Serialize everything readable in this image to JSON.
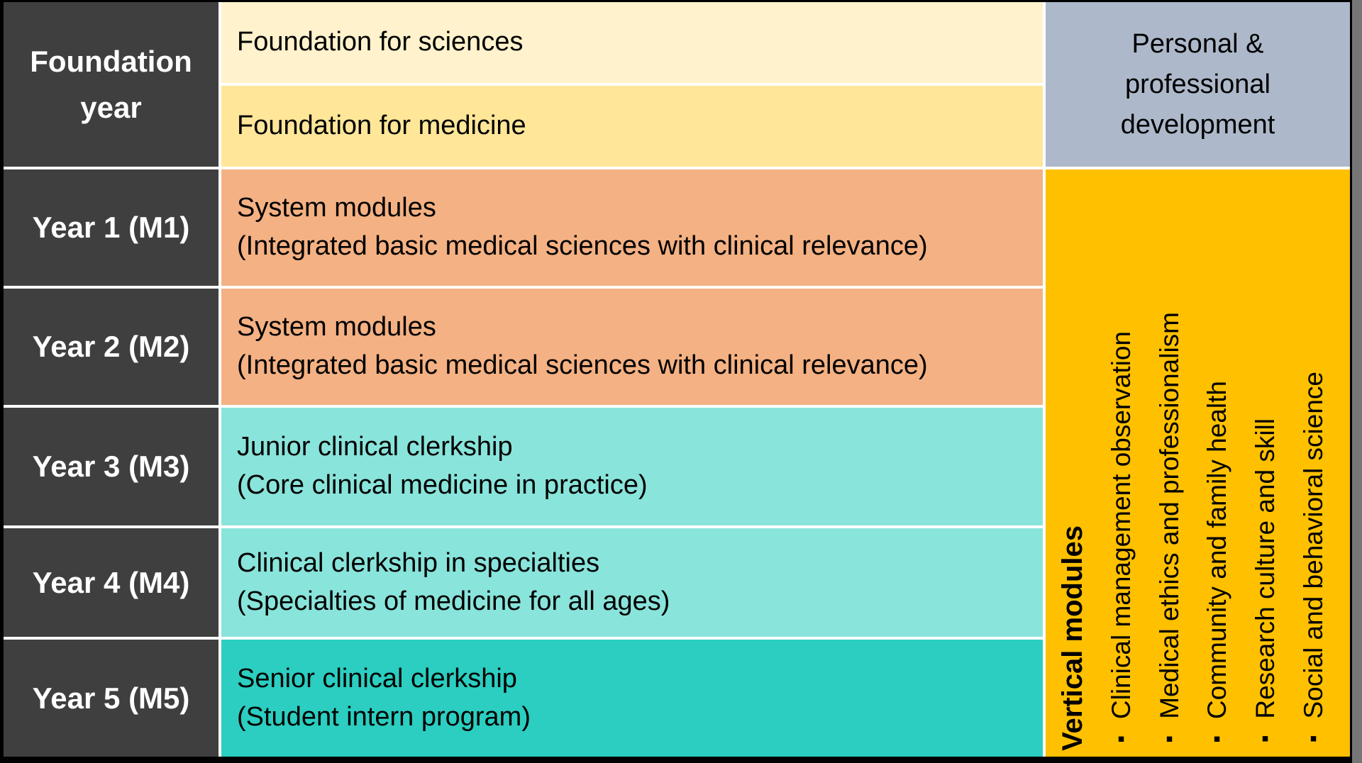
{
  "colors": {
    "dark_header": "#3F3F3F",
    "foundation_sciences": "#FFF2CC",
    "foundation_medicine": "#FFE699",
    "system_modules": "#F4B183",
    "clerkship_light": "#89E4DB",
    "clerkship_dark": "#2BCEC0",
    "ppd_header": "#ADB9CA",
    "vertical_panel": "#FFC000",
    "gridline": "#FFFFFF",
    "outer_border": "#000000",
    "page_margin": "#767676",
    "text_light": "#FFFFFF",
    "text_dark": "#000000"
  },
  "left_column": {
    "rows": [
      {
        "label": "Foundation year"
      },
      {
        "label": "Year 1 (M1)"
      },
      {
        "label": "Year 2 (M2)"
      },
      {
        "label": "Year 3 (M3)"
      },
      {
        "label": "Year 4 (M4)"
      },
      {
        "label": "Year 5 (M5)"
      }
    ]
  },
  "main": {
    "foundation_rows": [
      {
        "label": "Foundation for sciences"
      },
      {
        "label": "Foundation for medicine"
      }
    ],
    "year_rows": [
      {
        "title": "System modules",
        "subtitle": "(Integrated basic medical sciences with clinical relevance)"
      },
      {
        "title": "System modules",
        "subtitle": "(Integrated basic medical sciences with clinical relevance)"
      },
      {
        "title": "Junior clinical clerkship",
        "subtitle": "(Core clinical medicine in practice)"
      },
      {
        "title": "Clinical clerkship in specialties",
        "subtitle": "(Specialties of medicine for all ages)"
      },
      {
        "title": "Senior clinical clerkship",
        "subtitle": "(Student intern program)"
      }
    ]
  },
  "right_column": {
    "header": "Personal & professional development",
    "vertical_title": "Vertical modules",
    "bullet": "▪",
    "items": [
      "Clinical management observation",
      "Medical ethics and professionalism",
      "Community and family health",
      "Research culture and skill",
      "Social and behavioral science"
    ]
  }
}
